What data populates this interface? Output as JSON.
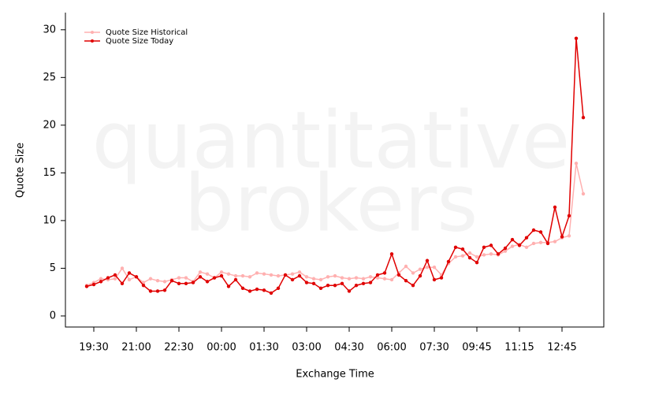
{
  "chart_data": {
    "type": "line",
    "watermark": [
      "quantitative",
      "brokers"
    ],
    "x_label": "Exchange Time",
    "y_label": "Quote Size",
    "categories": [
      null,
      "19:30",
      null,
      null,
      null,
      null,
      null,
      "21:00",
      null,
      null,
      null,
      null,
      null,
      "22:30",
      null,
      null,
      null,
      null,
      null,
      "00:00",
      null,
      null,
      null,
      null,
      null,
      "01:30",
      null,
      null,
      null,
      null,
      null,
      "03:00",
      null,
      null,
      null,
      null,
      null,
      "04:30",
      null,
      null,
      null,
      null,
      null,
      "06:00",
      null,
      null,
      null,
      null,
      null,
      "07:30",
      null,
      null,
      null,
      null,
      null,
      "09:45",
      null,
      null,
      null,
      null,
      null,
      "11:15",
      null,
      null,
      null,
      null,
      null,
      "12:45",
      null,
      null,
      null
    ],
    "series": [
      {
        "name": "Quote Size Historical",
        "color": "#ffb0b0",
        "values": [
          3.2,
          3.5,
          3.9,
          3.8,
          3.9,
          5.0,
          3.8,
          4.1,
          3.5,
          3.9,
          3.7,
          3.6,
          3.8,
          4.0,
          4.0,
          3.6,
          4.6,
          4.4,
          4.0,
          4.6,
          4.4,
          4.2,
          4.2,
          4.1,
          4.5,
          4.4,
          4.3,
          4.2,
          4.3,
          4.4,
          4.6,
          4.1,
          3.9,
          3.8,
          4.1,
          4.2,
          4.0,
          3.9,
          4.0,
          3.9,
          4.1,
          4.0,
          3.9,
          3.8,
          4.5,
          5.2,
          4.5,
          4.9,
          5.1,
          5.1,
          4.3,
          5.5,
          6.2,
          6.3,
          6.6,
          6.2,
          6.4,
          6.5,
          6.4,
          6.8,
          7.3,
          7.5,
          7.2,
          7.6,
          7.7,
          7.7,
          7.8,
          8.2,
          8.4,
          16.0,
          12.8
        ]
      },
      {
        "name": "Quote Size Today",
        "color": "#e00000",
        "values": [
          3.1,
          3.3,
          3.6,
          4.0,
          4.3,
          3.4,
          4.5,
          4.1,
          3.2,
          2.6,
          2.6,
          2.7,
          3.7,
          3.4,
          3.4,
          3.5,
          4.1,
          3.6,
          4.0,
          4.2,
          3.1,
          3.8,
          2.9,
          2.6,
          2.8,
          2.7,
          2.4,
          2.9,
          4.3,
          3.8,
          4.2,
          3.5,
          3.4,
          2.9,
          3.2,
          3.2,
          3.4,
          2.6,
          3.2,
          3.4,
          3.5,
          4.3,
          4.5,
          6.5,
          4.3,
          3.7,
          3.2,
          4.2,
          5.8,
          3.8,
          4.0,
          5.7,
          7.2,
          7.0,
          6.1,
          5.6,
          7.2,
          7.4,
          6.5,
          7.1,
          8.0,
          7.4,
          8.2,
          9.0,
          8.8,
          7.6,
          11.4,
          8.3,
          10.5,
          29.1,
          20.8
        ]
      }
    ],
    "ylim": [
      -1.16,
      31.8
    ],
    "yticks": [
      0,
      5,
      10,
      15,
      20,
      25,
      30
    ],
    "legend": "upper left"
  }
}
